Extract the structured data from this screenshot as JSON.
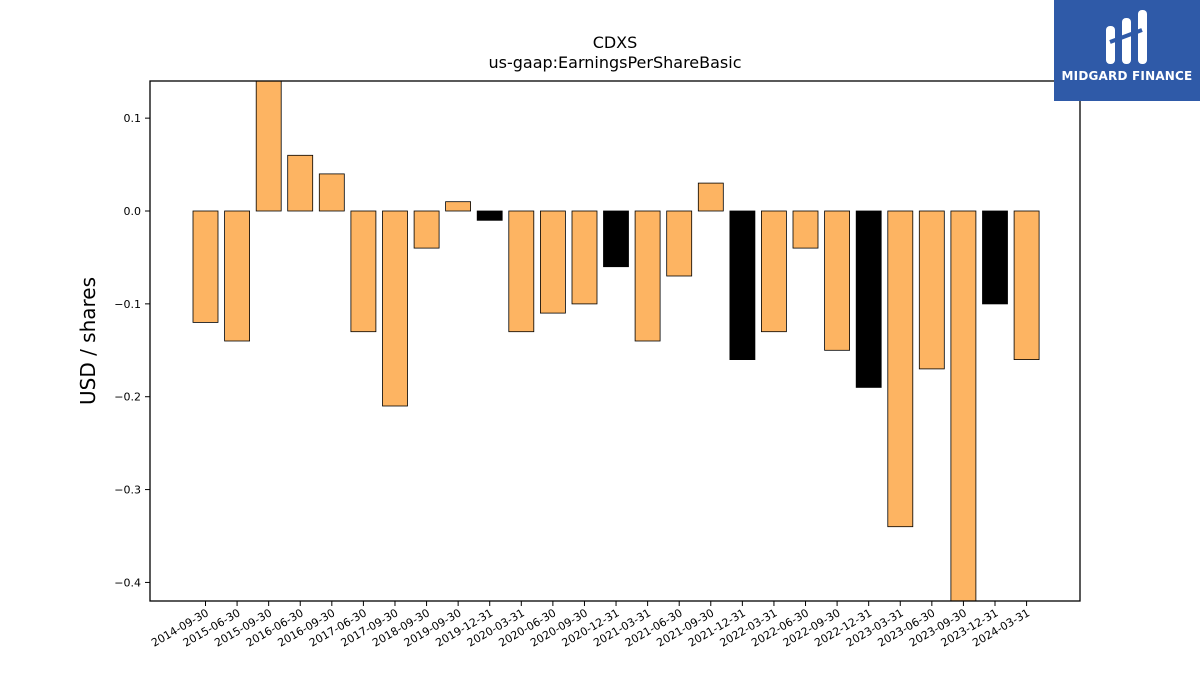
{
  "chart_data": {
    "type": "bar",
    "title": "CDXS",
    "subtitle": "us-gaap:EarningsPerShareBasic",
    "ylabel": "USD / shares",
    "xlabel": "",
    "ylim": [
      -0.42,
      0.14
    ],
    "yticks": [
      0.1,
      0.0,
      -0.1,
      -0.2,
      -0.3,
      -0.4
    ],
    "yticklabels": [
      "0.1",
      "0.0",
      "−0.1",
      "−0.2",
      "−0.3",
      "−0.4"
    ],
    "grid": false,
    "colors": {
      "default": "#fdb462",
      "highlight": "#000000"
    },
    "categories": [
      "2014-09-30",
      "2015-06-30",
      "2015-09-30",
      "2016-06-30",
      "2016-09-30",
      "2017-06-30",
      "2017-09-30",
      "2018-09-30",
      "2019-09-30",
      "2019-12-31",
      "2020-03-31",
      "2020-06-30",
      "2020-09-30",
      "2020-12-31",
      "2021-03-31",
      "2021-06-30",
      "2021-09-30",
      "2021-12-31",
      "2022-03-31",
      "2022-06-30",
      "2022-09-30",
      "2022-12-31",
      "2023-03-31",
      "2023-06-30",
      "2023-09-30",
      "2023-12-31",
      "2024-03-31"
    ],
    "values": [
      -0.12,
      -0.14,
      0.14,
      0.06,
      0.04,
      -0.13,
      -0.21,
      -0.04,
      0.01,
      -0.01,
      -0.13,
      -0.11,
      -0.1,
      -0.06,
      -0.14,
      -0.07,
      0.03,
      -0.16,
      -0.13,
      -0.04,
      -0.15,
      -0.19,
      -0.34,
      -0.17,
      -0.42,
      -0.1,
      -0.16
    ],
    "highlighted": [
      false,
      false,
      false,
      false,
      false,
      false,
      false,
      false,
      false,
      true,
      false,
      false,
      false,
      true,
      false,
      false,
      false,
      true,
      false,
      false,
      false,
      true,
      false,
      false,
      false,
      true,
      false
    ]
  },
  "logo": {
    "text": "MIDGARD FINANCE"
  }
}
